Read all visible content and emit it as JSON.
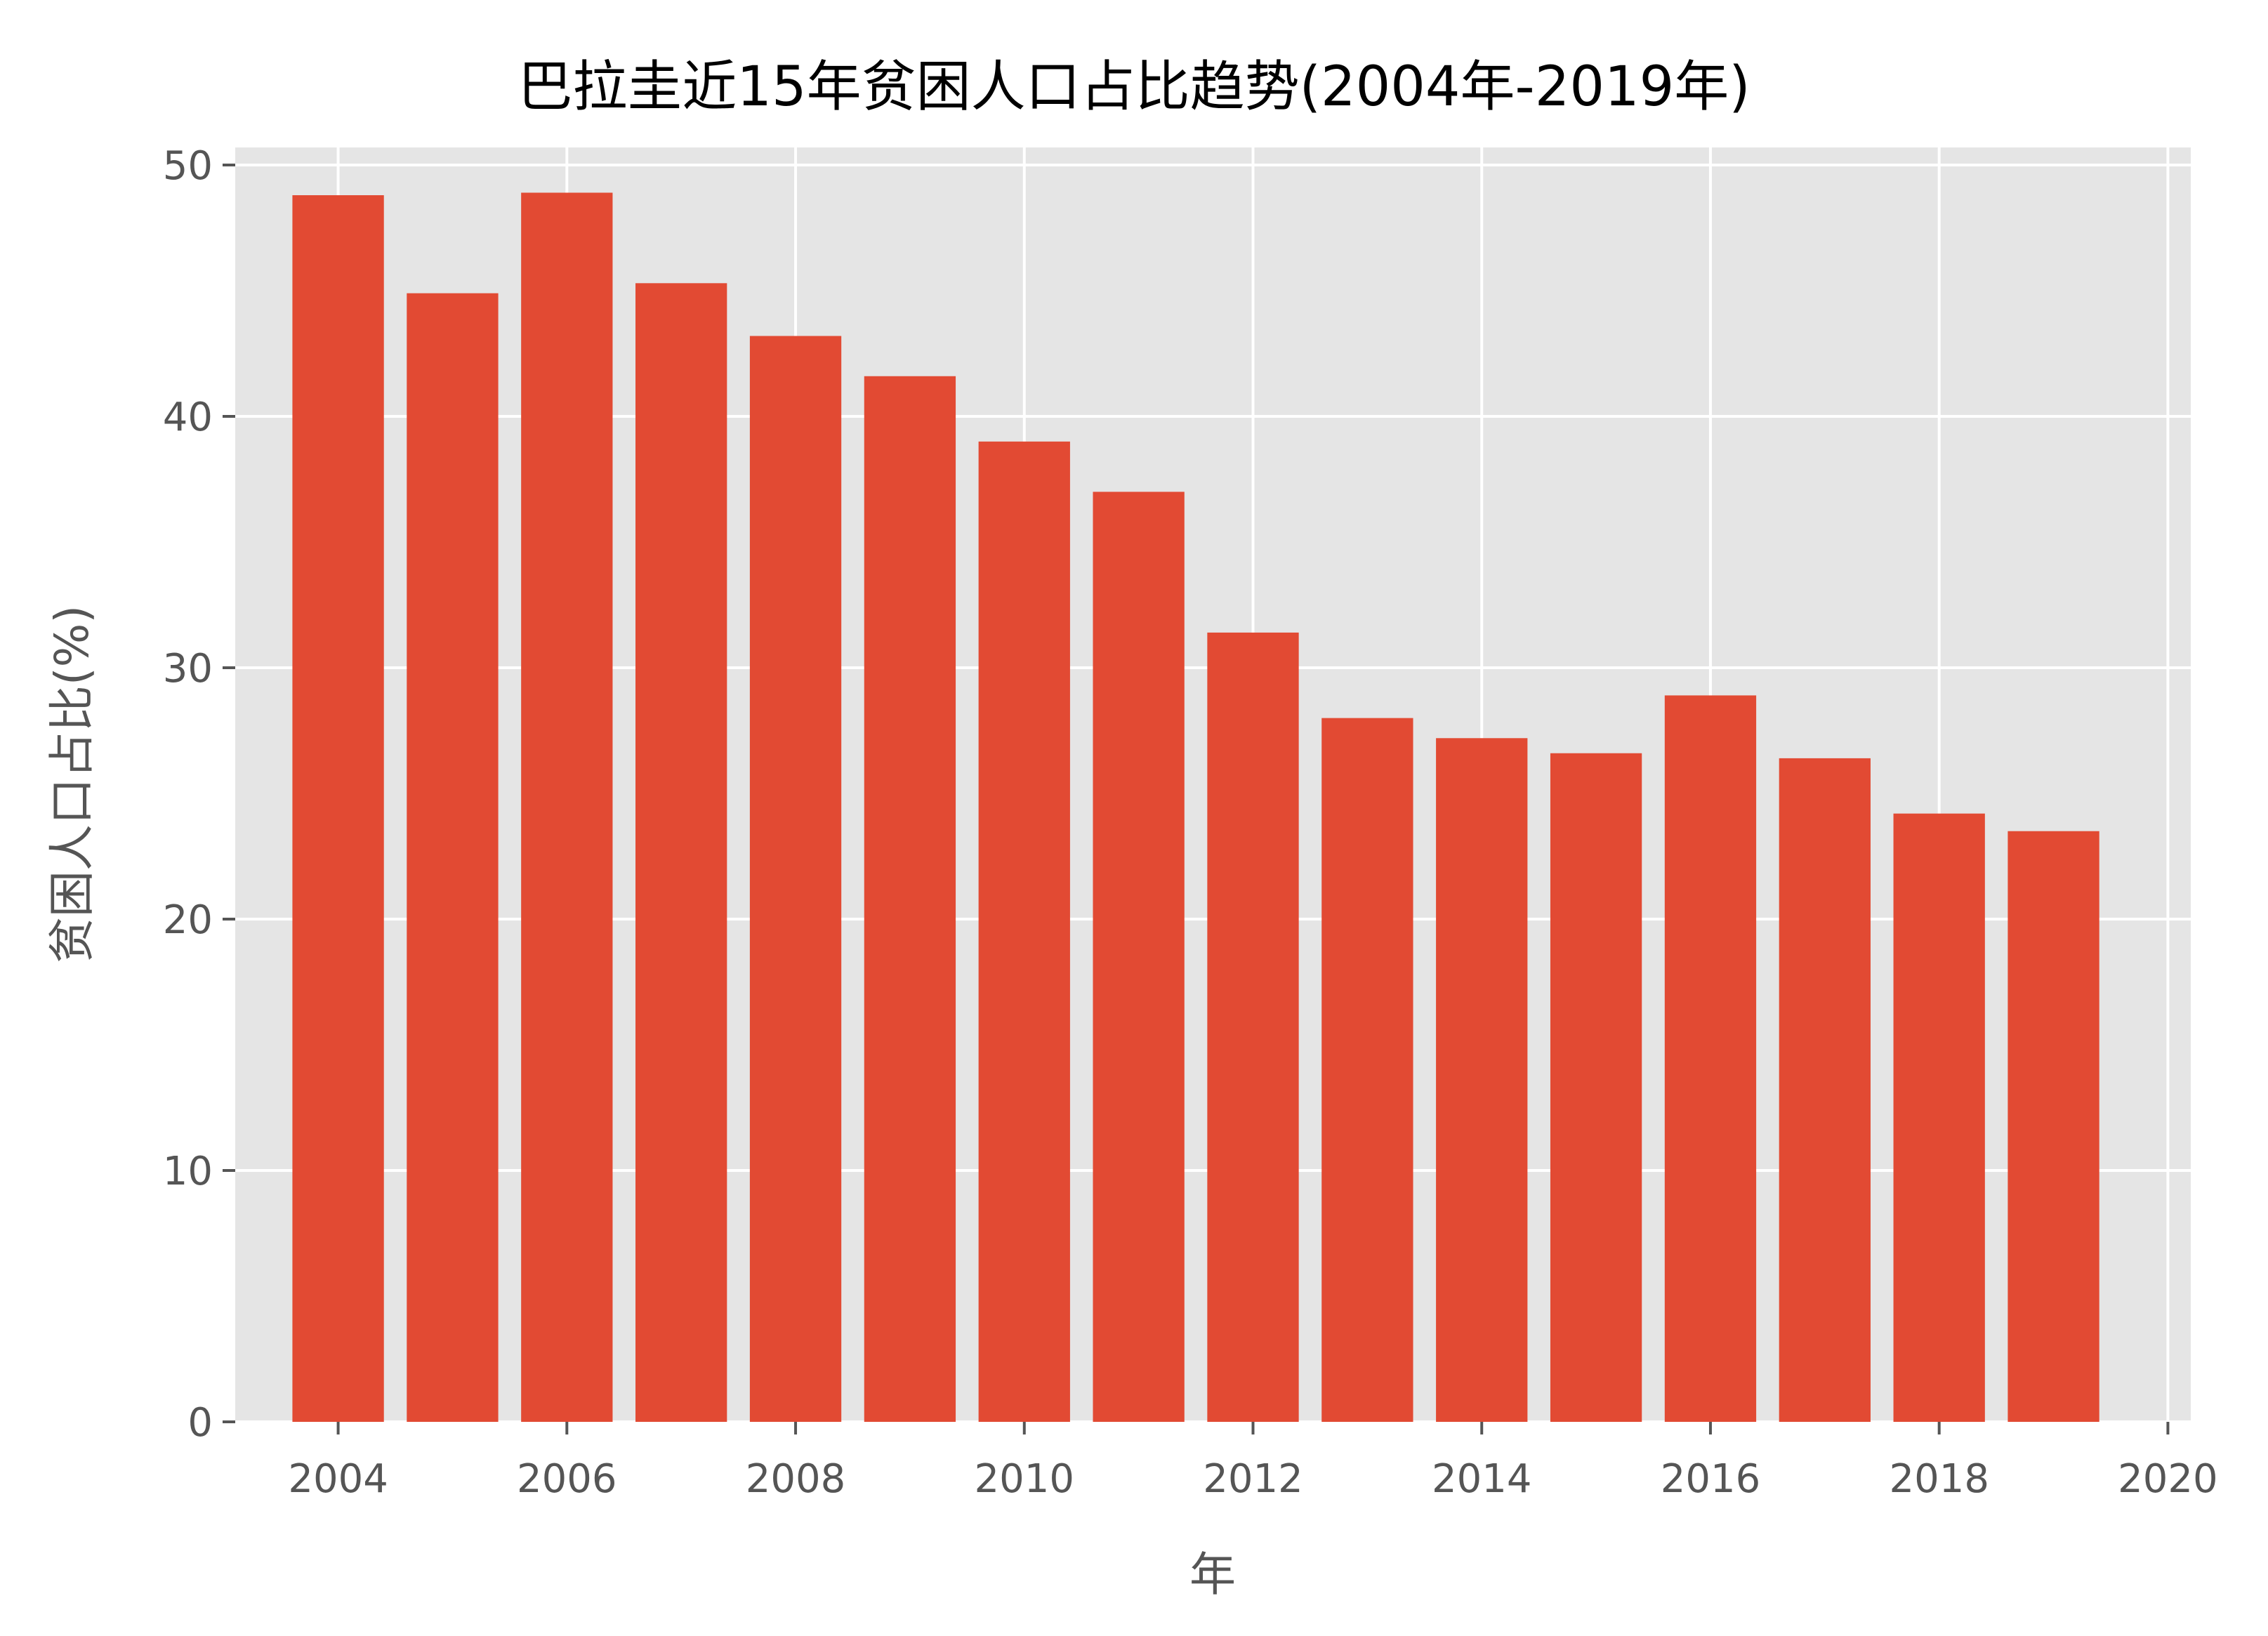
{
  "chart_data": {
    "type": "bar",
    "title": "巴拉圭近15年贫困人口占比趋势(2004年-2019年)",
    "xlabel": "年",
    "ylabel": "贫困人口占比(%)",
    "x": [
      2004,
      2005,
      2006,
      2007,
      2008,
      2009,
      2010,
      2011,
      2012,
      2013,
      2014,
      2015,
      2016,
      2017,
      2018,
      2019
    ],
    "values": [
      48.8,
      44.9,
      48.9,
      45.3,
      43.2,
      41.6,
      39.0,
      37.0,
      31.4,
      28.0,
      27.2,
      26.6,
      28.9,
      26.4,
      24.2,
      23.5
    ],
    "xlim": [
      2003.1,
      2020.2
    ],
    "ylim": [
      0,
      50.7
    ],
    "xticks": [
      2004,
      2006,
      2008,
      2010,
      2012,
      2014,
      2016,
      2018,
      2020
    ],
    "yticks": [
      0,
      10,
      20,
      30,
      40,
      50
    ],
    "grid": true,
    "colors": {
      "bar": "#e24a33",
      "plot_background": "#e5e5e5"
    }
  }
}
